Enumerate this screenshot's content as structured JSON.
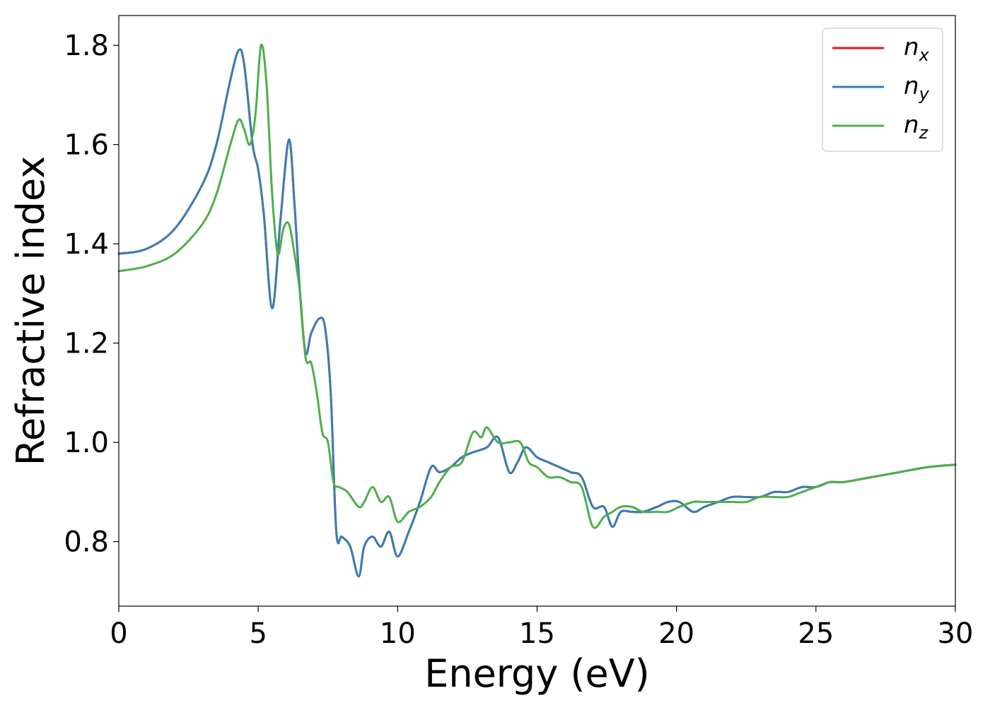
{
  "chart_data": {
    "type": "line",
    "xlabel": "Energy (eV)",
    "ylabel": "Refractive index",
    "xlim": [
      0,
      30
    ],
    "ylim": [
      0.67,
      1.86
    ],
    "x_ticks": [
      "0",
      "5",
      "10",
      "15",
      "20",
      "25",
      "30"
    ],
    "y_ticks": [
      "0.8",
      "1.0",
      "1.2",
      "1.4",
      "1.6",
      "1.8"
    ],
    "grid": false,
    "legend_position": "top-right",
    "series": [
      {
        "name": "n",
        "subscript": "x",
        "color": "#e41a1c",
        "x": [
          0,
          1,
          2,
          3,
          3.5,
          4,
          4.3,
          4.5,
          4.8,
          5,
          5.2,
          5.5,
          5.8,
          6.1,
          6.3,
          6.5,
          6.7,
          6.9,
          7.2,
          7.4,
          7.6,
          7.8,
          8.0,
          8.3,
          8.6,
          8.8,
          9.1,
          9.4,
          9.7,
          10.0,
          10.4,
          10.8,
          11.2,
          11.5,
          11.9,
          12.3,
          12.7,
          13.2,
          13.6,
          14.0,
          14.3,
          14.6,
          15.0,
          15.4,
          15.8,
          16.2,
          16.6,
          17.0,
          17.4,
          17.7,
          18.0,
          18.4,
          18.8,
          19.3,
          19.7,
          20.1,
          20.6,
          21.0,
          21.5,
          22.0,
          22.5,
          23.0,
          23.5,
          24.0,
          24.5,
          25.0,
          25.5,
          26.0,
          27.0,
          28.0,
          29.0,
          30.0
        ],
        "values": [
          1.38,
          1.39,
          1.43,
          1.52,
          1.6,
          1.73,
          1.79,
          1.76,
          1.6,
          1.55,
          1.46,
          1.27,
          1.45,
          1.61,
          1.48,
          1.3,
          1.18,
          1.22,
          1.25,
          1.23,
          1.1,
          0.82,
          0.81,
          0.79,
          0.73,
          0.79,
          0.81,
          0.79,
          0.82,
          0.77,
          0.82,
          0.88,
          0.95,
          0.94,
          0.95,
          0.97,
          0.98,
          0.99,
          1.01,
          0.94,
          0.96,
          0.99,
          0.97,
          0.96,
          0.95,
          0.94,
          0.93,
          0.87,
          0.87,
          0.83,
          0.86,
          0.86,
          0.86,
          0.87,
          0.88,
          0.88,
          0.86,
          0.87,
          0.88,
          0.89,
          0.89,
          0.89,
          0.9,
          0.9,
          0.91,
          0.91,
          0.92,
          0.92,
          0.93,
          0.94,
          0.95,
          0.955
        ]
      },
      {
        "name": "n",
        "subscript": "y",
        "color": "#377eb8",
        "x": [
          0,
          1,
          2,
          3,
          3.5,
          4,
          4.3,
          4.5,
          4.8,
          5,
          5.2,
          5.5,
          5.8,
          6.1,
          6.3,
          6.5,
          6.7,
          6.9,
          7.2,
          7.4,
          7.6,
          7.8,
          8.0,
          8.3,
          8.6,
          8.8,
          9.1,
          9.4,
          9.7,
          10.0,
          10.4,
          10.8,
          11.2,
          11.5,
          11.9,
          12.3,
          12.7,
          13.2,
          13.6,
          14.0,
          14.3,
          14.6,
          15.0,
          15.4,
          15.8,
          16.2,
          16.6,
          17.0,
          17.4,
          17.7,
          18.0,
          18.4,
          18.8,
          19.3,
          19.7,
          20.1,
          20.6,
          21.0,
          21.5,
          22.0,
          22.5,
          23.0,
          23.5,
          24.0,
          24.5,
          25.0,
          25.5,
          26.0,
          27.0,
          28.0,
          29.0,
          30.0
        ],
        "values": [
          1.38,
          1.39,
          1.43,
          1.52,
          1.6,
          1.73,
          1.79,
          1.76,
          1.6,
          1.55,
          1.46,
          1.27,
          1.45,
          1.61,
          1.48,
          1.3,
          1.18,
          1.22,
          1.25,
          1.23,
          1.1,
          0.82,
          0.81,
          0.79,
          0.73,
          0.79,
          0.81,
          0.79,
          0.82,
          0.77,
          0.82,
          0.88,
          0.95,
          0.94,
          0.95,
          0.97,
          0.98,
          0.99,
          1.01,
          0.94,
          0.96,
          0.99,
          0.97,
          0.96,
          0.95,
          0.94,
          0.93,
          0.87,
          0.87,
          0.83,
          0.86,
          0.86,
          0.86,
          0.87,
          0.88,
          0.88,
          0.86,
          0.87,
          0.88,
          0.89,
          0.89,
          0.89,
          0.9,
          0.9,
          0.91,
          0.91,
          0.92,
          0.92,
          0.93,
          0.94,
          0.95,
          0.955
        ]
      },
      {
        "name": "n",
        "subscript": "z",
        "color": "#4daf4a",
        "x": [
          0,
          1,
          2,
          3,
          3.5,
          4,
          4.3,
          4.5,
          4.7,
          4.9,
          5.1,
          5.3,
          5.5,
          5.7,
          5.9,
          6.1,
          6.3,
          6.5,
          6.7,
          6.9,
          7.1,
          7.3,
          7.5,
          7.7,
          7.9,
          8.2,
          8.6,
          8.8,
          9.1,
          9.4,
          9.7,
          10.0,
          10.4,
          10.8,
          11.2,
          11.5,
          11.9,
          12.3,
          12.7,
          13.0,
          13.2,
          13.6,
          14.0,
          14.4,
          14.7,
          15.0,
          15.4,
          15.8,
          16.2,
          16.6,
          17.0,
          17.4,
          17.7,
          18.0,
          18.4,
          18.8,
          19.3,
          19.7,
          20.1,
          20.6,
          21.0,
          21.5,
          22.0,
          22.5,
          23.0,
          23.5,
          24.0,
          24.5,
          25.0,
          25.5,
          26.0,
          27.0,
          28.0,
          29.0,
          30.0
        ],
        "values": [
          1.345,
          1.355,
          1.38,
          1.44,
          1.5,
          1.6,
          1.65,
          1.63,
          1.6,
          1.66,
          1.8,
          1.72,
          1.5,
          1.38,
          1.43,
          1.44,
          1.38,
          1.3,
          1.17,
          1.16,
          1.1,
          1.02,
          1.0,
          0.92,
          0.91,
          0.9,
          0.87,
          0.88,
          0.91,
          0.88,
          0.89,
          0.84,
          0.86,
          0.87,
          0.89,
          0.92,
          0.95,
          0.96,
          1.02,
          1.01,
          1.03,
          1.0,
          1.0,
          1.0,
          0.96,
          0.95,
          0.93,
          0.93,
          0.92,
          0.91,
          0.83,
          0.85,
          0.86,
          0.87,
          0.87,
          0.86,
          0.86,
          0.86,
          0.87,
          0.88,
          0.88,
          0.88,
          0.88,
          0.88,
          0.89,
          0.89,
          0.89,
          0.9,
          0.91,
          0.92,
          0.92,
          0.93,
          0.94,
          0.95,
          0.955
        ]
      }
    ]
  }
}
